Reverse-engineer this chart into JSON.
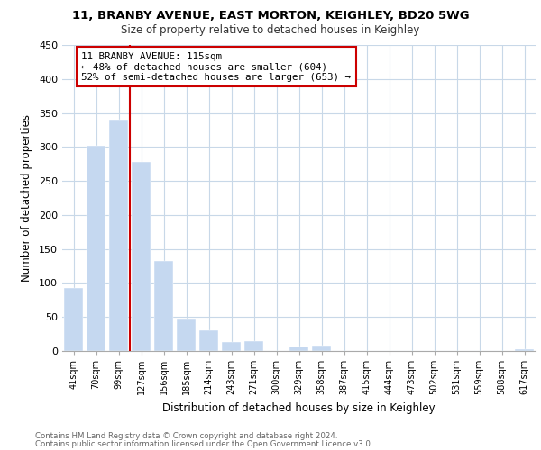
{
  "title1": "11, BRANBY AVENUE, EAST MORTON, KEIGHLEY, BD20 5WG",
  "title2": "Size of property relative to detached houses in Keighley",
  "xlabel": "Distribution of detached houses by size in Keighley",
  "ylabel": "Number of detached properties",
  "footnote1": "Contains HM Land Registry data © Crown copyright and database right 2024.",
  "footnote2": "Contains public sector information licensed under the Open Government Licence v3.0.",
  "annotation_line1": "11 BRANBY AVENUE: 115sqm",
  "annotation_line2": "← 48% of detached houses are smaller (604)",
  "annotation_line3": "52% of semi-detached houses are larger (653) →",
  "categories": [
    "41sqm",
    "70sqm",
    "99sqm",
    "127sqm",
    "156sqm",
    "185sqm",
    "214sqm",
    "243sqm",
    "271sqm",
    "300sqm",
    "329sqm",
    "358sqm",
    "387sqm",
    "415sqm",
    "444sqm",
    "473sqm",
    "502sqm",
    "531sqm",
    "559sqm",
    "588sqm",
    "617sqm"
  ],
  "values": [
    93,
    302,
    340,
    278,
    132,
    47,
    31,
    13,
    14,
    0,
    6,
    8,
    0,
    0,
    0,
    0,
    0,
    0,
    0,
    0,
    2
  ],
  "bar_color": "#c5d8f0",
  "vline_x": 2.5,
  "vline_color": "#cc0000",
  "box_color": "#cc0000",
  "background_color": "#ffffff",
  "grid_color": "#c8d8e8",
  "ylim": [
    0,
    450
  ],
  "yticks": [
    0,
    50,
    100,
    150,
    200,
    250,
    300,
    350,
    400,
    450
  ]
}
